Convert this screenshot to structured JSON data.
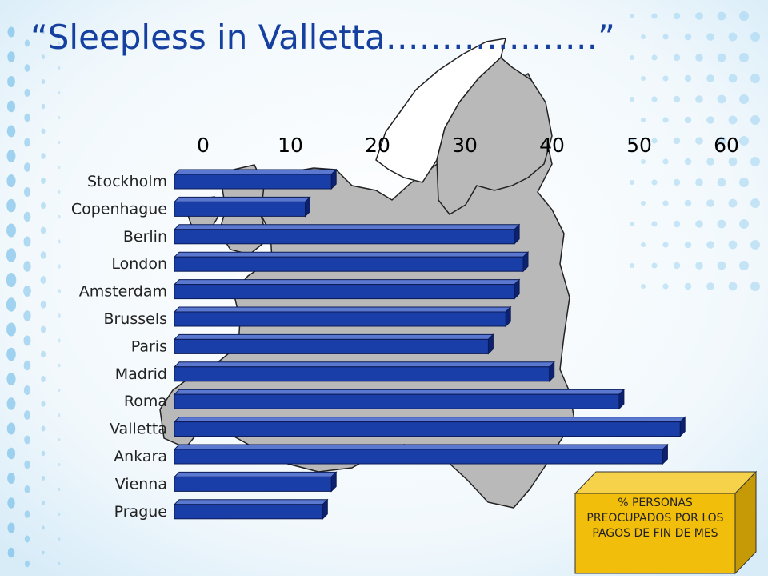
{
  "slide": {
    "title": "“Sleepless in Valletta……………….”",
    "note": "% PERSONAS PREOCUPADOS POR LOS PAGOS DE FIN DE MES"
  },
  "colors": {
    "bar_front": "#1a3ea8",
    "bar_top": "#5a78d0",
    "bar_side": "#0c2270",
    "title": "#1540a0",
    "note_box_front": "#f2be0c",
    "note_box_top": "#f6d24a",
    "note_box_side": "#c69a06",
    "map_land": "#b9b9b9",
    "map_highlight": "#ffffff"
  },
  "chart_data": {
    "type": "bar",
    "orientation": "horizontal",
    "title": "",
    "xlabel": "",
    "ylabel": "",
    "xlim": [
      0,
      60
    ],
    "xticks": [
      0,
      10,
      20,
      30,
      40,
      50,
      60
    ],
    "xtick_labels": [
      "0",
      "10",
      "20",
      "30",
      "40",
      "50",
      "60"
    ],
    "x_axis_position": "top",
    "grid": false,
    "categories": [
      "Stockholm",
      "Copenhague",
      "Berlin",
      "London",
      "Amsterdam",
      "Brussels",
      "Paris",
      "Madrid",
      "Roma",
      "Valletta",
      "Ankara",
      "Vienna",
      "Prague"
    ],
    "values": [
      18,
      15,
      39,
      40,
      39,
      38,
      36,
      43,
      51,
      58,
      56,
      18,
      17
    ]
  }
}
